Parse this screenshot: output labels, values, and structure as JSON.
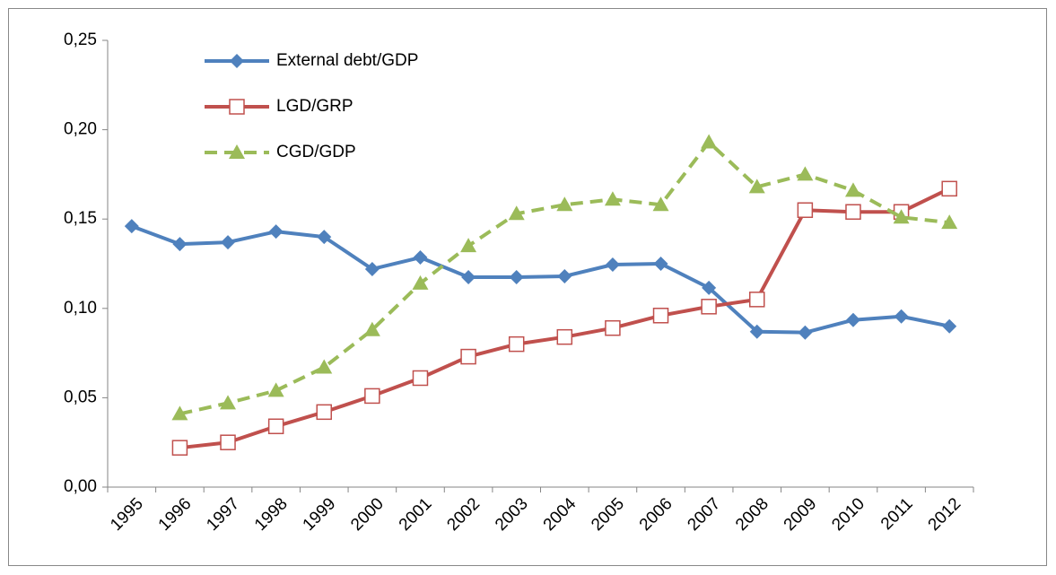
{
  "chart_data": {
    "type": "line",
    "categories": [
      "1995",
      "1996",
      "1997",
      "1998",
      "1999",
      "2000",
      "2001",
      "2002",
      "2003",
      "2004",
      "2005",
      "2006",
      "2007",
      "2008",
      "2009",
      "2010",
      "2011",
      "2012"
    ],
    "series": [
      {
        "name": "External debt/GDP",
        "color": "#4f81bd",
        "marker": "diamond",
        "dash": false,
        "values": [
          0.146,
          0.136,
          0.137,
          0.143,
          0.14,
          0.122,
          0.1285,
          0.1175,
          0.1175,
          0.118,
          0.1245,
          0.125,
          0.1115,
          0.087,
          0.0865,
          0.0935,
          0.0955,
          0.09
        ]
      },
      {
        "name": "LGD/GRP",
        "color": "#c0504d",
        "marker": "square-open",
        "dash": false,
        "values": [
          null,
          0.022,
          0.025,
          0.034,
          0.042,
          0.051,
          0.061,
          0.073,
          0.08,
          0.084,
          0.089,
          0.096,
          0.101,
          0.105,
          0.155,
          0.154,
          0.154,
          0.167
        ]
      },
      {
        "name": "CGD/GDP",
        "color": "#9bbb59",
        "marker": "triangle",
        "dash": true,
        "values": [
          null,
          0.041,
          0.047,
          0.054,
          0.067,
          0.088,
          0.114,
          0.135,
          0.153,
          0.158,
          0.161,
          0.158,
          0.193,
          0.168,
          0.175,
          0.166,
          0.151,
          0.148
        ]
      }
    ],
    "ylim": [
      0,
      0.25
    ],
    "yticks": [
      {
        "value": 0,
        "label": "0,00"
      },
      {
        "value": 0.05,
        "label": "0,05"
      },
      {
        "value": 0.1,
        "label": "0,10"
      },
      {
        "value": 0.15,
        "label": "0,15"
      },
      {
        "value": 0.2,
        "label": "0,20"
      },
      {
        "value": 0.25,
        "label": "0,25"
      }
    ],
    "grid": false,
    "legend": "top-left"
  }
}
